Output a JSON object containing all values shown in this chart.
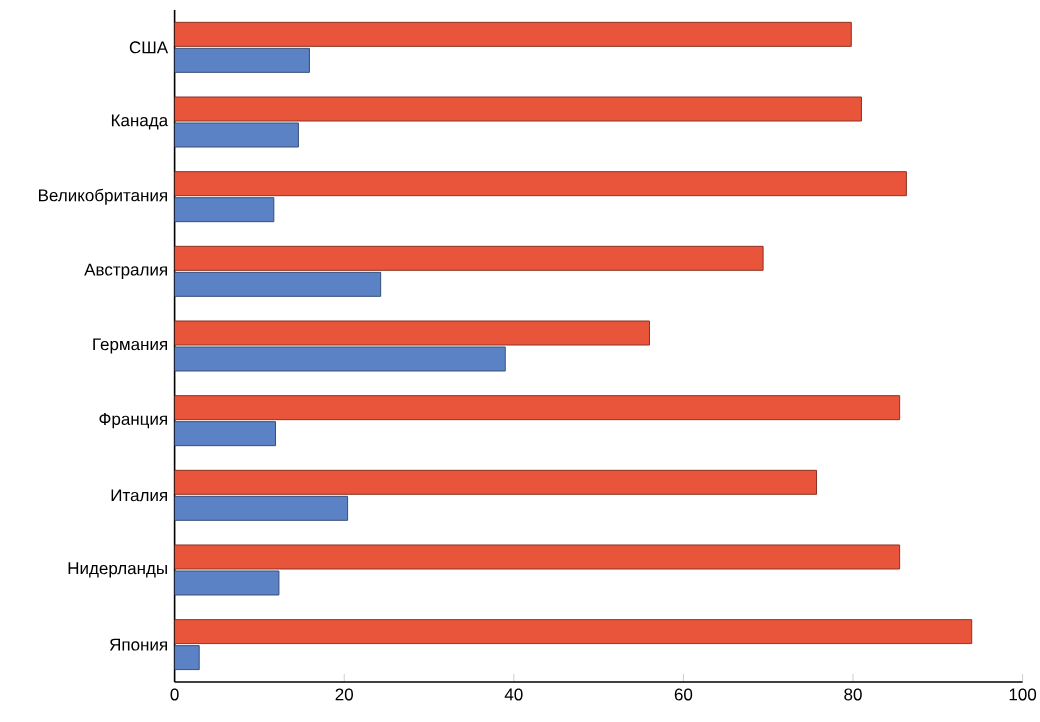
{
  "chart_data": {
    "type": "bar",
    "orientation": "horizontal",
    "categories": [
      "США",
      "Канада",
      "Великобритания",
      "Австралия",
      "Германия",
      "Франция",
      "Италия",
      "Нидерланды",
      "Япония"
    ],
    "series": [
      {
        "color": "#e8553a",
        "values": [
          79.8,
          81.0,
          86.3,
          69.4,
          56.0,
          85.5,
          75.7,
          85.5,
          94.0
        ]
      },
      {
        "color": "#5a82c4",
        "values": [
          15.9,
          14.6,
          11.7,
          24.3,
          39.0,
          11.9,
          20.4,
          12.3,
          2.9
        ]
      }
    ],
    "xlim": [
      0,
      100
    ],
    "xticks": [
      0,
      20,
      40,
      60,
      80,
      100
    ]
  }
}
